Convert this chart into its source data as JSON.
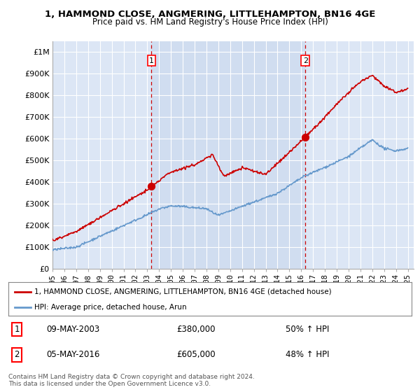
{
  "title": "1, HAMMOND CLOSE, ANGMERING, LITTLEHAMPTON, BN16 4GE",
  "subtitle": "Price paid vs. HM Land Registry's House Price Index (HPI)",
  "legend_line1": "1, HAMMOND CLOSE, ANGMERING, LITTLEHAMPTON, BN16 4GE (detached house)",
  "legend_line2": "HPI: Average price, detached house, Arun",
  "sale1_label": "1",
  "sale1_date": "09-MAY-2003",
  "sale1_price": "£380,000",
  "sale1_hpi": "50% ↑ HPI",
  "sale2_label": "2",
  "sale2_date": "05-MAY-2016",
  "sale2_price": "£605,000",
  "sale2_hpi": "48% ↑ HPI",
  "footnote": "Contains HM Land Registry data © Crown copyright and database right 2024.\nThis data is licensed under the Open Government Licence v3.0.",
  "red_color": "#cc0000",
  "blue_color": "#6699cc",
  "marker_color": "#cc0000",
  "bg_color": "#ffffff",
  "plot_bg": "#dce6f5",
  "plot_bg_highlight": "#d0dcf0",
  "grid_color": "#ffffff",
  "ylim": [
    0,
    1050000
  ],
  "yticks": [
    0,
    100000,
    200000,
    300000,
    400000,
    500000,
    600000,
    700000,
    800000,
    900000,
    1000000
  ],
  "ytick_labels": [
    "£0",
    "£100K",
    "£200K",
    "£300K",
    "£400K",
    "£500K",
    "£600K",
    "£700K",
    "£800K",
    "£900K",
    "£1M"
  ],
  "sale1_year": 2003.35,
  "sale1_value": 380000,
  "sale2_year": 2016.35,
  "sale2_value": 605000,
  "xmin": 1995,
  "xmax": 2025.5
}
